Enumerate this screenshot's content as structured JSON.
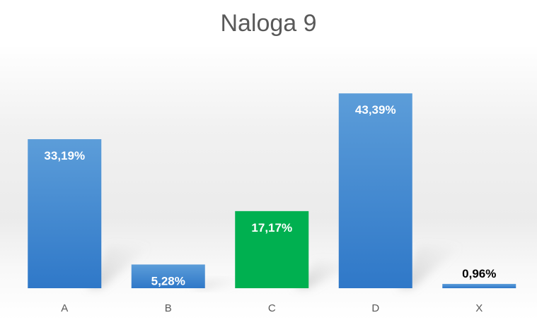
{
  "chart_data": {
    "type": "bar",
    "title": "Naloga 9",
    "xlabel": "",
    "ylabel": "",
    "categories": [
      "A",
      "B",
      "C",
      "D",
      "X"
    ],
    "values": [
      33.19,
      5.28,
      17.17,
      43.39,
      0.96
    ],
    "data_labels": [
      "33,19%",
      "5,28%",
      "17,17%",
      "43,39%",
      "0,96%"
    ],
    "ylim": [
      0,
      50
    ],
    "grid": false,
    "legend": "none",
    "bar_colors": [
      "#4A90D9",
      "#4A90D9",
      "#00B050",
      "#4A90D9",
      "#4A90D9"
    ],
    "colors": {
      "blue_top": "#5B9BD5",
      "blue_bottom": "#2E75C6",
      "green": "#00B050",
      "label_inside": "#FFFFFF",
      "label_outside": "#000000",
      "axis_text": "#595959"
    }
  }
}
